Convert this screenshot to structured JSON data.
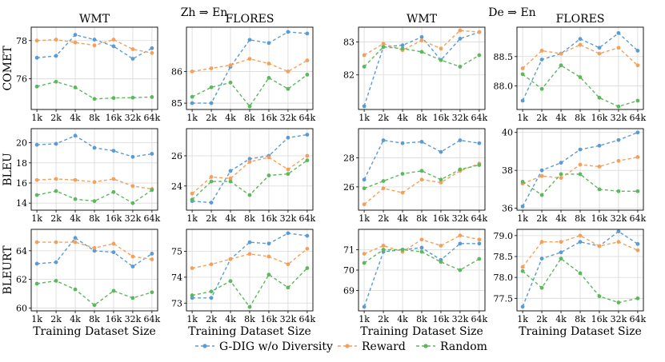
{
  "group_titles": [
    "Zh ⇒ En",
    "De ⇒ En"
  ],
  "legend": {
    "placement": "bottom-center",
    "items": [
      {
        "name": "G-DIG w/o Diversity",
        "color": "#5B9BD5"
      },
      {
        "name": "Reward",
        "color": "#F5A05A"
      },
      {
        "name": "Random",
        "color": "#5CB85C"
      }
    ]
  },
  "chart_data": [
    {
      "type": "line",
      "title": "WMT",
      "group": "Zh ⇒ En",
      "metric": "COMET",
      "xlabel": "",
      "ylabel": "COMET",
      "x": [
        "1k",
        "2k",
        "4k",
        "8k",
        "16k",
        "32k",
        "64k"
      ],
      "ylim": [
        74.4,
        78.7
      ],
      "yticks": [
        76,
        78
      ],
      "ytick_labels": [
        "76",
        "78"
      ],
      "series": [
        {
          "name": "G-DIG w/o Diversity",
          "values": [
            77.1,
            77.2,
            78.3,
            78.05,
            77.7,
            77.05,
            77.6
          ]
        },
        {
          "name": "Reward",
          "values": [
            78.0,
            78.05,
            77.9,
            77.75,
            78.05,
            77.55,
            77.35
          ]
        },
        {
          "name": "Random",
          "values": [
            75.6,
            75.85,
            75.55,
            74.95,
            75.0,
            75.02,
            75.05
          ]
        }
      ]
    },
    {
      "type": "line",
      "title": "FLORES",
      "group": "Zh ⇒ En",
      "metric": "COMET",
      "xlabel": "",
      "ylabel": "",
      "x": [
        "1k",
        "2k",
        "4k",
        "8k",
        "16k",
        "32k",
        "64k"
      ],
      "ylim": [
        84.8,
        87.4
      ],
      "yticks": [
        85,
        86
      ],
      "ytick_labels": [
        "85",
        "86"
      ],
      "series": [
        {
          "name": "G-DIG w/o Diversity",
          "values": [
            85.0,
            85.0,
            86.15,
            87.0,
            86.9,
            87.25,
            87.2
          ]
        },
        {
          "name": "Reward",
          "values": [
            86.0,
            86.1,
            86.2,
            86.4,
            86.25,
            86.0,
            86.35
          ]
        },
        {
          "name": "Random",
          "values": [
            85.2,
            85.5,
            85.65,
            84.9,
            85.8,
            85.45,
            85.9
          ]
        }
      ]
    },
    {
      "type": "line",
      "title": "WMT",
      "group": "De ⇒ En",
      "metric": "COMET",
      "xlabel": "",
      "ylabel": "",
      "x": [
        "1k",
        "2k",
        "4k",
        "8k",
        "16k",
        "32k",
        "64k"
      ],
      "ylim": [
        80.95,
        83.45
      ],
      "yticks": [
        82,
        83
      ],
      "ytick_labels": [
        "82",
        "83"
      ],
      "series": [
        {
          "name": "G-DIG w/o Diversity",
          "values": [
            81.05,
            82.85,
            82.9,
            83.15,
            82.45,
            83.1,
            83.3
          ]
        },
        {
          "name": "Reward",
          "values": [
            82.6,
            82.95,
            82.75,
            83.05,
            82.8,
            83.35,
            83.3
          ]
        },
        {
          "name": "Random",
          "values": [
            82.25,
            82.85,
            82.8,
            82.7,
            82.45,
            82.25,
            82.6
          ]
        }
      ]
    },
    {
      "type": "line",
      "title": "FLORES",
      "group": "De ⇒ En",
      "metric": "COMET",
      "xlabel": "",
      "ylabel": "",
      "x": [
        "1k",
        "2k",
        "4k",
        "8k",
        "16k",
        "32k",
        "64k"
      ],
      "ylim": [
        87.6,
        89.0
      ],
      "yticks": [
        88.0,
        88.5
      ],
      "ytick_labels": [
        "88.0",
        "88.5"
      ],
      "series": [
        {
          "name": "G-DIG w/o Diversity",
          "values": [
            87.75,
            88.45,
            88.55,
            88.8,
            88.65,
            88.9,
            88.6
          ]
        },
        {
          "name": "Reward",
          "values": [
            88.3,
            88.6,
            88.55,
            88.7,
            88.55,
            88.65,
            88.35
          ]
        },
        {
          "name": "Random",
          "values": [
            88.2,
            87.95,
            88.35,
            88.15,
            87.8,
            87.65,
            87.75
          ]
        }
      ]
    },
    {
      "type": "line",
      "title": "",
      "group": "Zh ⇒ En",
      "metric": "BLEU",
      "xlabel": "",
      "ylabel": "BLEU",
      "x": [
        "1k",
        "2k",
        "4k",
        "8k",
        "16k",
        "32k",
        "64k"
      ],
      "ylim": [
        13.3,
        21.4
      ],
      "yticks": [
        14,
        16,
        18,
        20
      ],
      "ytick_labels": [
        "14",
        "16",
        "18",
        "20"
      ],
      "series": [
        {
          "name": "G-DIG w/o Diversity",
          "values": [
            19.8,
            19.9,
            20.7,
            19.5,
            19.2,
            18.6,
            18.9
          ]
        },
        {
          "name": "Reward",
          "values": [
            16.3,
            16.4,
            16.3,
            16.1,
            16.4,
            15.7,
            15.4
          ]
        },
        {
          "name": "Random",
          "values": [
            14.8,
            15.2,
            14.4,
            14.2,
            15.1,
            14.0,
            15.3
          ]
        }
      ]
    },
    {
      "type": "line",
      "title": "",
      "group": "Zh ⇒ En",
      "metric": "BLEU",
      "xlabel": "",
      "ylabel": "",
      "x": [
        "1k",
        "2k",
        "4k",
        "8k",
        "16k",
        "32k",
        "64k"
      ],
      "ylim": [
        22.4,
        27.8
      ],
      "yticks": [
        24,
        26
      ],
      "ytick_labels": [
        "24",
        "26"
      ],
      "series": [
        {
          "name": "G-DIG w/o Diversity",
          "values": [
            23.0,
            22.9,
            25.0,
            25.8,
            26.0,
            27.2,
            27.4
          ]
        },
        {
          "name": "Reward",
          "values": [
            23.5,
            24.6,
            24.5,
            25.6,
            25.9,
            25.1,
            26.0
          ]
        },
        {
          "name": "Random",
          "values": [
            23.1,
            24.3,
            24.3,
            23.4,
            24.7,
            24.8,
            25.7
          ]
        }
      ]
    },
    {
      "type": "line",
      "title": "",
      "group": "De ⇒ En",
      "metric": "BLEU",
      "xlabel": "",
      "ylabel": "",
      "x": [
        "1k",
        "2k",
        "4k",
        "8k",
        "16k",
        "32k",
        "64k"
      ],
      "ylim": [
        24.4,
        30.0
      ],
      "yticks": [
        26,
        28
      ],
      "ytick_labels": [
        "26",
        "28"
      ],
      "series": [
        {
          "name": "G-DIG w/o Diversity",
          "values": [
            26.5,
            29.2,
            29.0,
            29.1,
            28.4,
            29.2,
            29.0
          ]
        },
        {
          "name": "Reward",
          "values": [
            24.8,
            25.9,
            25.6,
            26.5,
            26.3,
            27.1,
            27.6
          ]
        },
        {
          "name": "Random",
          "values": [
            25.9,
            26.4,
            26.9,
            27.1,
            26.5,
            27.2,
            27.5
          ]
        }
      ]
    },
    {
      "type": "line",
      "title": "",
      "group": "De ⇒ En",
      "metric": "BLEU",
      "xlabel": "",
      "ylabel": "",
      "x": [
        "1k",
        "2k",
        "4k",
        "8k",
        "16k",
        "32k",
        "64k"
      ],
      "ylim": [
        35.9,
        40.2
      ],
      "yticks": [
        36,
        38,
        40
      ],
      "ytick_labels": [
        "36",
        "38",
        "40"
      ],
      "series": [
        {
          "name": "G-DIG w/o Diversity",
          "values": [
            36.1,
            38.0,
            38.4,
            39.1,
            39.3,
            39.6,
            40.0
          ]
        },
        {
          "name": "Reward",
          "values": [
            37.3,
            37.7,
            37.6,
            38.3,
            38.2,
            38.5,
            38.7
          ]
        },
        {
          "name": "Random",
          "values": [
            37.4,
            36.7,
            37.8,
            37.8,
            37.0,
            36.9,
            36.9
          ]
        }
      ]
    },
    {
      "type": "line",
      "title": "",
      "group": "Zh ⇒ En",
      "metric": "BLEURT",
      "xlabel": "Training Dataset Size",
      "ylabel": "BLEURT",
      "x": [
        "1k",
        "2k",
        "4k",
        "8k",
        "16k",
        "32k",
        "64k"
      ],
      "ylim": [
        59.8,
        65.5
      ],
      "yticks": [
        60,
        62,
        64
      ],
      "ytick_labels": [
        "60",
        "62",
        "64"
      ],
      "series": [
        {
          "name": "G-DIG w/o Diversity",
          "values": [
            63.1,
            63.2,
            64.9,
            64.0,
            63.9,
            62.9,
            63.8
          ]
        },
        {
          "name": "Reward",
          "values": [
            64.6,
            64.6,
            64.6,
            64.2,
            64.5,
            63.6,
            63.4
          ]
        },
        {
          "name": "Random",
          "values": [
            61.7,
            61.9,
            61.3,
            60.2,
            61.2,
            60.7,
            61.1
          ]
        }
      ]
    },
    {
      "type": "line",
      "title": "",
      "group": "Zh ⇒ En",
      "metric": "BLEURT",
      "xlabel": "Training Dataset Size",
      "ylabel": "",
      "x": [
        "1k",
        "2k",
        "4k",
        "8k",
        "16k",
        "32k",
        "64k"
      ],
      "ylim": [
        72.7,
        75.85
      ],
      "yticks": [
        73,
        74,
        75
      ],
      "ytick_labels": [
        "73",
        "74",
        "75"
      ],
      "series": [
        {
          "name": "G-DIG w/o Diversity",
          "values": [
            73.2,
            73.2,
            74.7,
            75.35,
            75.3,
            75.7,
            75.6
          ]
        },
        {
          "name": "Reward",
          "values": [
            74.35,
            74.5,
            74.7,
            74.9,
            74.8,
            74.5,
            75.1
          ]
        },
        {
          "name": "Random",
          "values": [
            73.3,
            73.45,
            73.85,
            72.85,
            74.1,
            73.6,
            74.35
          ]
        }
      ]
    },
    {
      "type": "line",
      "title": "",
      "group": "De ⇒ En",
      "metric": "BLEURT",
      "xlabel": "Training Dataset Size",
      "ylabel": "",
      "x": [
        "1k",
        "2k",
        "4k",
        "8k",
        "16k",
        "32k",
        "64k"
      ],
      "ylim": [
        68.0,
        72.0
      ],
      "yticks": [
        69,
        70,
        71
      ],
      "ytick_labels": [
        "69",
        "70",
        "71"
      ],
      "series": [
        {
          "name": "G-DIG w/o Diversity",
          "values": [
            68.2,
            70.9,
            71.0,
            71.1,
            70.5,
            71.3,
            71.3
          ]
        },
        {
          "name": "Reward",
          "values": [
            70.8,
            71.2,
            70.9,
            71.5,
            71.2,
            71.7,
            71.5
          ]
        },
        {
          "name": "Random",
          "values": [
            70.35,
            71.0,
            71.0,
            70.9,
            70.4,
            70.0,
            70.55
          ]
        }
      ]
    },
    {
      "type": "line",
      "title": "",
      "group": "De ⇒ En",
      "metric": "BLEURT",
      "xlabel": "Training Dataset Size",
      "ylabel": "",
      "x": [
        "1k",
        "2k",
        "4k",
        "8k",
        "16k",
        "32k",
        "64k"
      ],
      "ylim": [
        77.2,
        79.15
      ],
      "yticks": [
        77.5,
        78.0,
        78.5,
        79.0
      ],
      "ytick_labels": [
        "77.5",
        "78.0",
        "78.5",
        "79.0"
      ],
      "series": [
        {
          "name": "G-DIG w/o Diversity",
          "values": [
            77.3,
            78.45,
            78.6,
            78.85,
            78.75,
            79.1,
            78.8
          ]
        },
        {
          "name": "Reward",
          "values": [
            78.25,
            78.85,
            78.85,
            79.0,
            78.75,
            78.85,
            78.65
          ]
        },
        {
          "name": "Random",
          "values": [
            78.15,
            77.75,
            78.45,
            78.1,
            77.55,
            77.4,
            77.5
          ]
        }
      ]
    }
  ]
}
